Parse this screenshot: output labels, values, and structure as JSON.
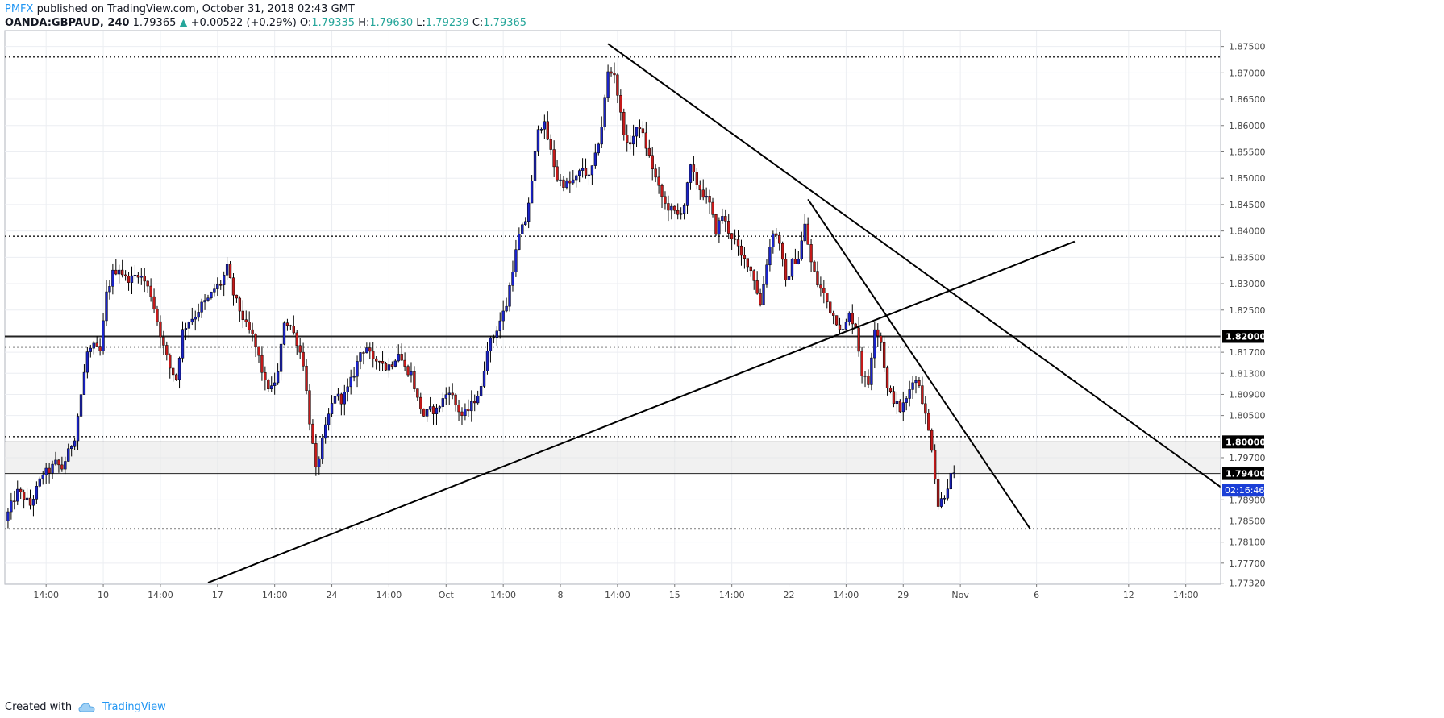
{
  "header": {
    "author": "PMFX",
    "published_text": "published on TradingView.com, October 31, 2018 02:43 GMT"
  },
  "symbol_line": {
    "symbol": "OANDA:GBPAUD, 240",
    "last": "1.79365",
    "change": "+0.00522 (+0.29%)",
    "o_label": "O:",
    "o": "1.79335",
    "h_label": "H:",
    "h": "1.79630",
    "l_label": "L:",
    "l": "1.79239",
    "c_label": "C:",
    "c": "1.79365"
  },
  "footer": {
    "created_with": "Created with",
    "brand": "TradingView"
  },
  "colors": {
    "bull": "#1a23c9",
    "bear": "#c41a1a",
    "grid": "#eceef2",
    "line": "#000000",
    "zone": "#e6e6e6",
    "countdown_bg": "#1b3fd6"
  },
  "chart_data": {
    "type": "candlestick",
    "symbol": "OANDA:GBPAUD",
    "timeframe": "240",
    "ylim": [
      1.773,
      1.878
    ],
    "y_ticks": [
      "1.87500",
      "1.87000",
      "1.86500",
      "1.86000",
      "1.85500",
      "1.85000",
      "1.84500",
      "1.84000",
      "1.83500",
      "1.83000",
      "1.82500",
      "1.81700",
      "1.81300",
      "1.80900",
      "1.80500",
      "1.79700",
      "1.78900",
      "1.78500",
      "1.78100",
      "1.77700",
      "1.77320"
    ],
    "x_labels": [
      {
        "label": "14:00",
        "idx": 12
      },
      {
        "label": "10",
        "idx": 30
      },
      {
        "label": "14:00",
        "idx": 48
      },
      {
        "label": "17",
        "idx": 66
      },
      {
        "label": "14:00",
        "idx": 84
      },
      {
        "label": "24",
        "idx": 102
      },
      {
        "label": "14:00",
        "idx": 120
      },
      {
        "label": "Oct",
        "idx": 138
      },
      {
        "label": "14:00",
        "idx": 156
      },
      {
        "label": "8",
        "idx": 174
      },
      {
        "label": "14:00",
        "idx": 192
      },
      {
        "label": "15",
        "idx": 210
      },
      {
        "label": "14:00",
        "idx": 228
      },
      {
        "label": "22",
        "idx": 246
      },
      {
        "label": "14:00",
        "idx": 264
      },
      {
        "label": "29",
        "idx": 282
      },
      {
        "label": "Nov",
        "idx": 300
      },
      {
        "label": "6",
        "idx": 324
      },
      {
        "label": "12",
        "idx": 353
      },
      {
        "label": "14:00",
        "idx": 371
      }
    ],
    "idx_range": [
      -1,
      382
    ],
    "levels": [
      {
        "price": 1.873,
        "style": "dotted"
      },
      {
        "price": 1.839,
        "style": "dotted"
      },
      {
        "price": 1.818,
        "style": "dotted"
      },
      {
        "price": 1.801,
        "style": "dotted"
      },
      {
        "price": 1.7835,
        "style": "dotted"
      },
      {
        "price": 1.82,
        "style": "solid",
        "label": "1.82000"
      },
      {
        "price": 1.8,
        "style": "solid-thin",
        "label": "1.80000"
      },
      {
        "price": 1.794,
        "style": "solid-thin",
        "label": "1.79400"
      }
    ],
    "zone": [
      1.794,
      1.8
    ],
    "countdown": {
      "price": 1.79085,
      "label": "02:16:46"
    },
    "trendlines": [
      {
        "p1": [
          189,
          1.8755
        ],
        "p2": [
          383,
          1.791
        ]
      },
      {
        "p1": [
          252,
          1.846
        ],
        "p2": [
          322,
          1.7835
        ]
      },
      {
        "p1": [
          63,
          1.7733
        ],
        "p2": [
          336,
          1.838
        ]
      }
    ],
    "anchors": [
      [
        0,
        1.785
      ],
      [
        2,
        1.788
      ],
      [
        4,
        1.7905
      ],
      [
        6,
        1.7895
      ],
      [
        8,
        1.788
      ],
      [
        10,
        1.791
      ],
      [
        12,
        1.794
      ],
      [
        14,
        1.7945
      ],
      [
        16,
        1.796
      ],
      [
        18,
        1.795
      ],
      [
        20,
        1.798
      ],
      [
        22,
        1.801
      ],
      [
        24,
        1.809
      ],
      [
        26,
        1.817
      ],
      [
        28,
        1.818
      ],
      [
        30,
        1.817
      ],
      [
        32,
        1.828
      ],
      [
        34,
        1.832
      ],
      [
        36,
        1.833
      ],
      [
        38,
        1.831
      ],
      [
        40,
        1.831
      ],
      [
        42,
        1.832
      ],
      [
        44,
        1.8305
      ],
      [
        46,
        1.828
      ],
      [
        48,
        1.823
      ],
      [
        50,
        1.818
      ],
      [
        52,
        1.814
      ],
      [
        54,
        1.812
      ],
      [
        56,
        1.821
      ],
      [
        58,
        1.823
      ],
      [
        60,
        1.824
      ],
      [
        62,
        1.826
      ],
      [
        64,
        1.827
      ],
      [
        66,
        1.829
      ],
      [
        68,
        1.83
      ],
      [
        70,
        1.833
      ],
      [
        72,
        1.828
      ],
      [
        74,
        1.825
      ],
      [
        76,
        1.822
      ],
      [
        78,
        1.82
      ],
      [
        80,
        1.816
      ],
      [
        82,
        1.811
      ],
      [
        84,
        1.81
      ],
      [
        86,
        1.813
      ],
      [
        88,
        1.823
      ],
      [
        90,
        1.822
      ],
      [
        92,
        1.819
      ],
      [
        94,
        1.815
      ],
      [
        96,
        1.804
      ],
      [
        98,
        1.7945
      ],
      [
        100,
        1.8
      ],
      [
        102,
        1.805
      ],
      [
        104,
        1.809
      ],
      [
        106,
        1.808
      ],
      [
        108,
        1.81
      ],
      [
        110,
        1.813
      ],
      [
        112,
        1.817
      ],
      [
        114,
        1.818
      ],
      [
        116,
        1.815
      ],
      [
        118,
        1.816
      ],
      [
        120,
        1.814
      ],
      [
        122,
        1.815
      ],
      [
        124,
        1.817
      ],
      [
        126,
        1.814
      ],
      [
        128,
        1.813
      ],
      [
        130,
        1.808
      ],
      [
        132,
        1.805
      ],
      [
        134,
        1.806
      ],
      [
        136,
        1.806
      ],
      [
        138,
        1.808
      ],
      [
        140,
        1.81
      ],
      [
        142,
        1.807
      ],
      [
        144,
        1.805
      ],
      [
        146,
        1.806
      ],
      [
        148,
        1.808
      ],
      [
        150,
        1.81
      ],
      [
        152,
        1.818
      ],
      [
        154,
        1.82
      ],
      [
        156,
        1.823
      ],
      [
        158,
        1.826
      ],
      [
        160,
        1.833
      ],
      [
        162,
        1.839
      ],
      [
        164,
        1.842
      ],
      [
        166,
        1.849
      ],
      [
        168,
        1.86
      ],
      [
        170,
        1.86
      ],
      [
        172,
        1.855
      ],
      [
        174,
        1.85
      ],
      [
        176,
        1.849
      ],
      [
        178,
        1.849
      ],
      [
        180,
        1.85
      ],
      [
        182,
        1.852
      ],
      [
        184,
        1.85
      ],
      [
        186,
        1.854
      ],
      [
        188,
        1.86
      ],
      [
        190,
        1.87
      ],
      [
        192,
        1.87
      ],
      [
        194,
        1.862
      ],
      [
        196,
        1.856
      ],
      [
        198,
        1.858
      ],
      [
        200,
        1.86
      ],
      [
        202,
        1.856
      ],
      [
        204,
        1.852
      ],
      [
        206,
        1.848
      ],
      [
        208,
        1.845
      ],
      [
        210,
        1.844
      ],
      [
        212,
        1.843
      ],
      [
        214,
        1.845
      ],
      [
        216,
        1.852
      ],
      [
        218,
        1.849
      ],
      [
        220,
        1.847
      ],
      [
        222,
        1.845
      ],
      [
        224,
        1.84
      ],
      [
        226,
        1.843
      ],
      [
        228,
        1.84
      ],
      [
        230,
        1.838
      ],
      [
        232,
        1.835
      ],
      [
        234,
        1.834
      ],
      [
        236,
        1.831
      ],
      [
        238,
        1.826
      ],
      [
        240,
        1.834
      ],
      [
        242,
        1.84
      ],
      [
        244,
        1.838
      ],
      [
        246,
        1.83
      ],
      [
        248,
        1.834
      ],
      [
        250,
        1.835
      ],
      [
        252,
        1.841
      ],
      [
        254,
        1.834
      ],
      [
        256,
        1.83
      ],
      [
        258,
        1.828
      ],
      [
        260,
        1.825
      ],
      [
        262,
        1.823
      ],
      [
        264,
        1.821
      ],
      [
        266,
        1.824
      ],
      [
        268,
        1.822
      ],
      [
        270,
        1.813
      ],
      [
        272,
        1.811
      ],
      [
        274,
        1.822
      ],
      [
        276,
        1.819
      ],
      [
        278,
        1.81
      ],
      [
        280,
        1.808
      ],
      [
        282,
        1.806
      ],
      [
        284,
        1.808
      ],
      [
        286,
        1.812
      ],
      [
        288,
        1.811
      ],
      [
        290,
        1.805
      ],
      [
        292,
        1.799
      ],
      [
        294,
        1.788
      ],
      [
        296,
        1.79
      ],
      [
        298,
        1.7935
      ]
    ]
  }
}
